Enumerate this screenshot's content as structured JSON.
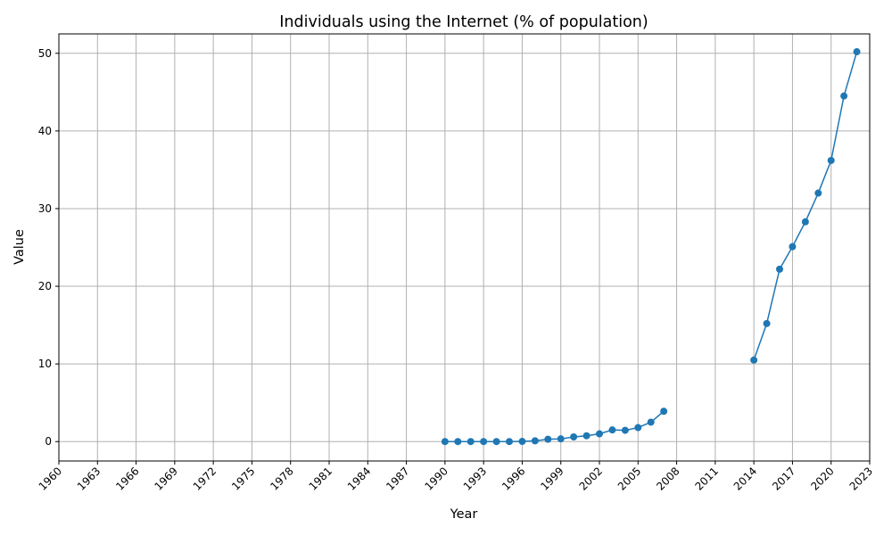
{
  "chart_data": {
    "type": "line",
    "title": "Individuals using the Internet (% of population)",
    "xlabel": "Year",
    "ylabel": "Value",
    "xlim": [
      1960,
      2023
    ],
    "ylim": [
      -2.5,
      52.5
    ],
    "xticks": [
      1960,
      1963,
      1966,
      1969,
      1972,
      1975,
      1978,
      1981,
      1984,
      1987,
      1990,
      1993,
      1996,
      1999,
      2002,
      2005,
      2008,
      2011,
      2014,
      2017,
      2020,
      2023
    ],
    "yticks": [
      0,
      10,
      20,
      30,
      40,
      50
    ],
    "grid": true,
    "series": [
      {
        "color": "#1f77b4",
        "marker": "circle",
        "points": [
          {
            "x": 1990,
            "y": 0.0
          },
          {
            "x": 1991,
            "y": 0.0
          },
          {
            "x": 1992,
            "y": 0.0
          },
          {
            "x": 1993,
            "y": 0.0
          },
          {
            "x": 1994,
            "y": 0.0
          },
          {
            "x": 1995,
            "y": 0.0
          },
          {
            "x": 1996,
            "y": 0.02
          },
          {
            "x": 1997,
            "y": 0.1
          },
          {
            "x": 1998,
            "y": 0.3
          },
          {
            "x": 1999,
            "y": 0.35
          },
          {
            "x": 2000,
            "y": 0.6
          },
          {
            "x": 2001,
            "y": 0.75
          },
          {
            "x": 2002,
            "y": 1.0
          },
          {
            "x": 2003,
            "y": 1.5
          },
          {
            "x": 2004,
            "y": 1.45
          },
          {
            "x": 2005,
            "y": 1.8
          },
          {
            "x": 2006,
            "y": 2.5
          },
          {
            "x": 2007,
            "y": 3.9
          },
          {
            "x": 2008,
            "y": null
          },
          {
            "x": 2009,
            "y": null
          },
          {
            "x": 2010,
            "y": null
          },
          {
            "x": 2011,
            "y": null
          },
          {
            "x": 2012,
            "y": null
          },
          {
            "x": 2013,
            "y": null
          },
          {
            "x": 2014,
            "y": 10.5
          },
          {
            "x": 2015,
            "y": 15.2
          },
          {
            "x": 2016,
            "y": 22.2
          },
          {
            "x": 2017,
            "y": 25.1
          },
          {
            "x": 2018,
            "y": 28.3
          },
          {
            "x": 2019,
            "y": 32.0
          },
          {
            "x": 2020,
            "y": 36.2
          },
          {
            "x": 2021,
            "y": 44.5
          },
          {
            "x": 2022,
            "y": 50.2
          }
        ]
      }
    ]
  }
}
